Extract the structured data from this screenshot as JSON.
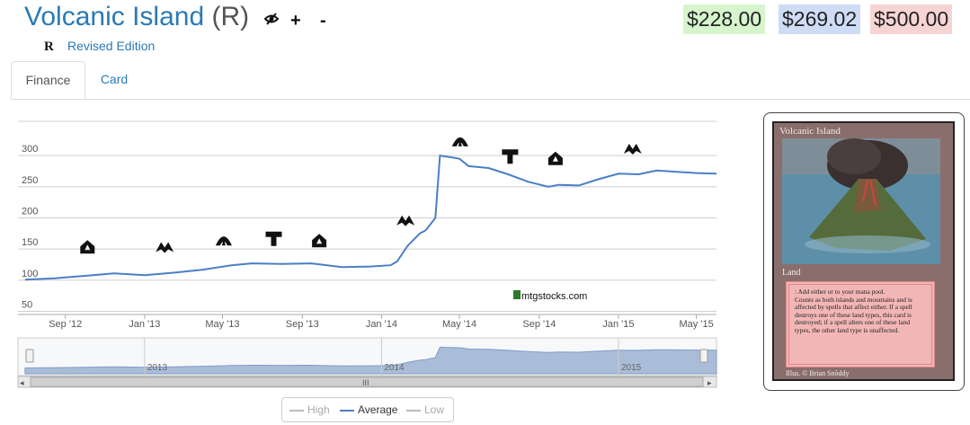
{
  "header": {
    "card_name": "Volcanic Island",
    "rarity": "(R)",
    "icons": [
      "eye-slash-icon",
      "plus-icon",
      "minus-icon"
    ],
    "set_symbol": "R",
    "set_name": "Revised Edition"
  },
  "prices": {
    "low": "$228.00",
    "average": "$269.02",
    "high": "$500.00",
    "colors": {
      "low": "#d6f5cc",
      "average": "#cfdcf6",
      "high": "#f7d4d4"
    }
  },
  "tabs": [
    {
      "label": "Finance",
      "active": true
    },
    {
      "label": "Card",
      "active": false
    }
  ],
  "chart_data": {
    "type": "line",
    "series": [
      {
        "name": "Average",
        "color": "#4a7fc4",
        "x": [
          "2012-07-01",
          "2012-08-15",
          "2012-10-01",
          "2012-11-15",
          "2013-01-01",
          "2013-02-15",
          "2013-04-01",
          "2013-05-15",
          "2013-06-15",
          "2013-08-01",
          "2013-09-15",
          "2013-11-01",
          "2013-12-15",
          "2014-01-15",
          "2014-01-25",
          "2014-02-10",
          "2014-03-01",
          "2014-03-10",
          "2014-03-25",
          "2014-04-01",
          "2014-05-01",
          "2014-05-15",
          "2014-06-15",
          "2014-07-15",
          "2014-08-15",
          "2014-09-15",
          "2014-10-01",
          "2014-11-01",
          "2014-12-01",
          "2015-01-01",
          "2015-02-01",
          "2015-03-01",
          "2015-04-01",
          "2015-05-01",
          "2015-06-01"
        ],
        "y": [
          101,
          103,
          107,
          111,
          108,
          112,
          117,
          124,
          127,
          126,
          127,
          121,
          122,
          124,
          130,
          155,
          175,
          180,
          200,
          300,
          295,
          283,
          280,
          270,
          258,
          250,
          253,
          252,
          262,
          271,
          270,
          276,
          274,
          272,
          271
        ]
      }
    ],
    "y_ticks": [
      50,
      100,
      150,
      200,
      250,
      300
    ],
    "ylim": [
      45,
      355
    ],
    "x_ticks": [
      "Sep '12",
      "Jan '13",
      "May '13",
      "Sep '13",
      "Jan '14",
      "May '14",
      "Sep '14",
      "Jan '15",
      "May '15"
    ],
    "x_tick_dates": [
      "2012-09-01",
      "2013-01-01",
      "2013-05-01",
      "2013-09-01",
      "2014-01-01",
      "2014-05-01",
      "2014-09-01",
      "2015-01-01",
      "2015-05-01"
    ],
    "xlim": [
      "2012-06-20",
      "2015-06-01"
    ],
    "set_release_icons": [
      {
        "date": "2012-10-05",
        "name": "return-to-ravnica-set-icon"
      },
      {
        "date": "2013-02-01",
        "name": "gatecrash-set-icon"
      },
      {
        "date": "2013-05-03",
        "name": "dragons-maze-set-icon"
      },
      {
        "date": "2013-07-19",
        "name": "magic-2014-set-icon"
      },
      {
        "date": "2013-09-27",
        "name": "theros-set-icon"
      },
      {
        "date": "2014-02-07",
        "name": "born-of-the-gods-set-icon"
      },
      {
        "date": "2014-05-02",
        "name": "journey-into-nyx-set-icon"
      },
      {
        "date": "2014-07-18",
        "name": "magic-2015-set-icon"
      },
      {
        "date": "2014-09-26",
        "name": "khans-of-tarkir-set-icon"
      },
      {
        "date": "2015-01-23",
        "name": "fate-reforged-set-icon"
      }
    ],
    "watermark": "mtgstocks.com",
    "navigator_labels": [
      "2013",
      "2014",
      "2015"
    ],
    "grid": true,
    "legend": "bottom-center"
  },
  "legend": {
    "high": "High",
    "average": "Average",
    "low": "Low"
  },
  "card_image": {
    "name": "Volcanic Island",
    "type": "Land",
    "text": "Counts as both islands and mountains and is affected by spells that affect either. If a spell destroys one of these land types, this card is destroyed; if a spell alters one of these land types, the other land type is unaffected.",
    "mana_text": ": Add either  or  to your mana pool.",
    "illustrator": "Illus. © Brian Snõddy"
  }
}
